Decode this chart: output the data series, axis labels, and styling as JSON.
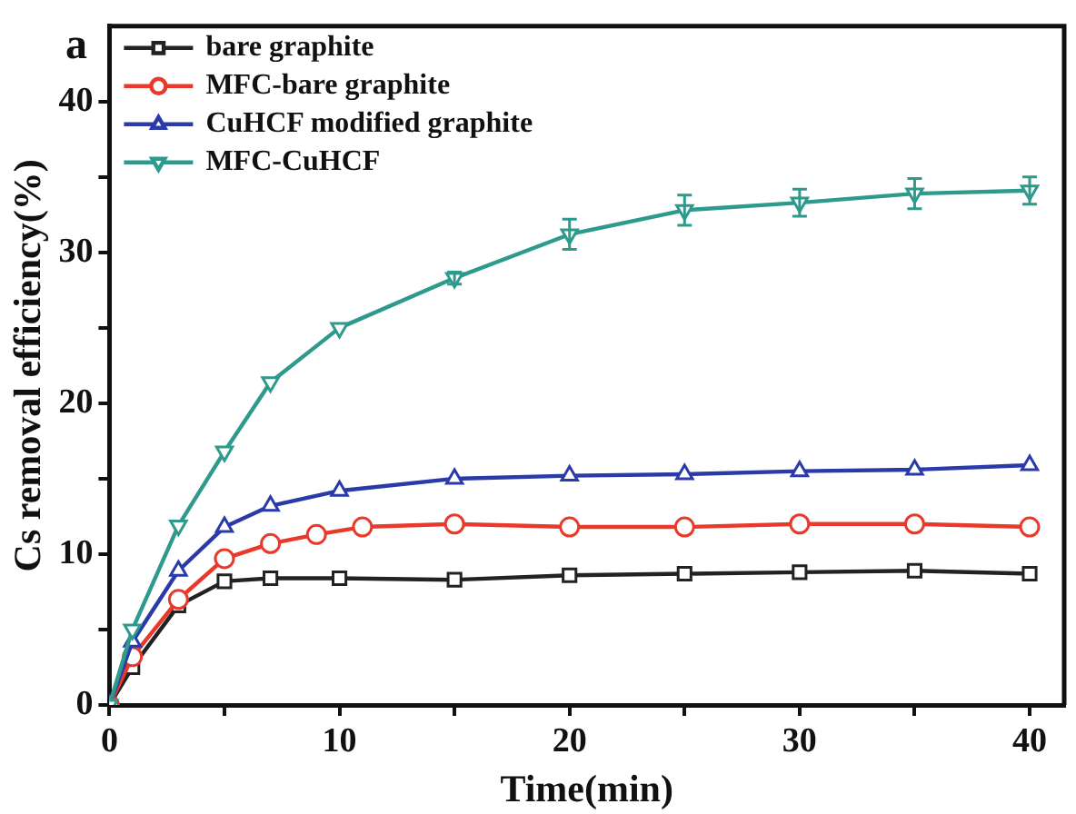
{
  "chart_data": {
    "type": "line",
    "xlabel": "Time(min)",
    "ylabel": "Cs removal efficiency(%)",
    "annotations": [
      "a"
    ],
    "xlim": [
      0,
      41.5
    ],
    "xticks": [
      0,
      {
        "value": 5,
        "label": null
      },
      10,
      {
        "value": 15,
        "label": null
      },
      20,
      {
        "value": 25,
        "label": null
      },
      30,
      {
        "value": 35,
        "label": null
      },
      40
    ],
    "ylim": [
      0,
      45
    ],
    "yticks": [
      0,
      {
        "value": 5,
        "label": null
      },
      10,
      {
        "value": 15,
        "label": null
      },
      20,
      {
        "value": 25,
        "label": null
      },
      30,
      {
        "value": 35,
        "label": null
      },
      40
    ],
    "grid": false,
    "legend": "top left",
    "line_style": "solid",
    "series": [
      {
        "name": "bare graphite",
        "color": "#222222",
        "marker": "square",
        "x": [
          0,
          1,
          3,
          5,
          7,
          10,
          15,
          20,
          25,
          30,
          35,
          40
        ],
        "values": [
          0,
          2.5,
          6.6,
          8.2,
          8.4,
          8.4,
          8.3,
          8.6,
          8.7,
          8.8,
          8.9,
          8.7
        ]
      },
      {
        "name": "MFC-bare graphite",
        "color": "#e8392b",
        "marker": "circle",
        "x": [
          0,
          1,
          3,
          5,
          7,
          9,
          11,
          15,
          20,
          25,
          30,
          35,
          40
        ],
        "values": [
          0,
          3.2,
          7.0,
          9.7,
          10.7,
          11.3,
          11.8,
          12.0,
          11.8,
          11.8,
          12.0,
          12.0,
          11.8
        ]
      },
      {
        "name": "CuHCF modified graphite",
        "color": "#2a3aa8",
        "marker": "triangle",
        "x": [
          0,
          1,
          3,
          5,
          7,
          10,
          15,
          20,
          25,
          30,
          35,
          40
        ],
        "values": [
          0,
          4.2,
          8.9,
          11.8,
          13.2,
          14.2,
          15.0,
          15.2,
          15.3,
          15.5,
          15.6,
          15.9
        ]
      },
      {
        "name": "MFC-CuHCF",
        "color": "#2e9a8c",
        "marker": "triangledown",
        "x": [
          0,
          1,
          3,
          5,
          7,
          10,
          15,
          20,
          25,
          30,
          35,
          40
        ],
        "values": [
          0,
          5.0,
          11.9,
          16.8,
          21.4,
          25.0,
          28.3,
          31.2,
          32.8,
          33.3,
          33.9,
          34.1
        ],
        "errors": [
          null,
          null,
          null,
          null,
          null,
          null,
          0.4,
          1.0,
          1.0,
          0.9,
          1.0,
          0.9
        ]
      }
    ]
  }
}
